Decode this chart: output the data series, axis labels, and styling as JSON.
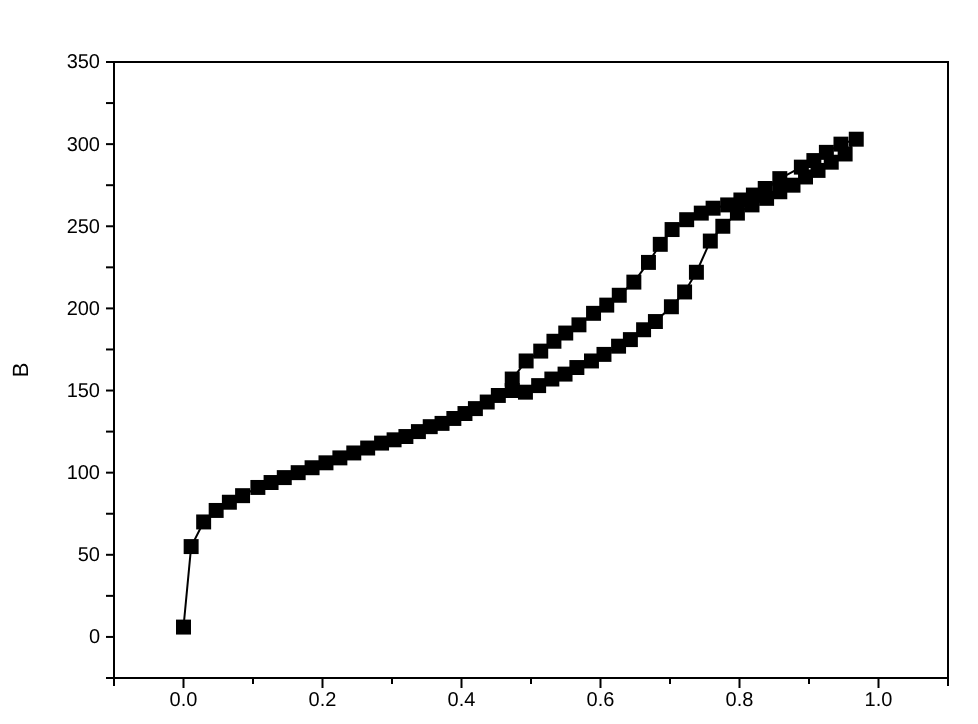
{
  "chart_data": {
    "type": "line",
    "ylabel": "B",
    "marker": "square",
    "line_style": "solid",
    "xlim": [
      -0.1,
      1.1
    ],
    "xticks": [
      {
        "value": -0.1,
        "label": null
      },
      {
        "value": 0,
        "label": "0.0"
      },
      {
        "value": 0.1,
        "label": null
      },
      0.2,
      {
        "value": 0.3,
        "label": null
      },
      0.4,
      {
        "value": 0.5,
        "label": null
      },
      0.6,
      {
        "value": 0.7,
        "label": null
      },
      0.8,
      {
        "value": 0.9,
        "label": null
      },
      {
        "value": 1,
        "label": "1.0"
      },
      {
        "value": 1.1,
        "label": null
      }
    ],
    "ylim": [
      -25,
      350
    ],
    "yticks": [
      {
        "value": -25,
        "label": null
      },
      0,
      {
        "value": 25,
        "label": null
      },
      50,
      {
        "value": 75,
        "label": null
      },
      100,
      {
        "value": 125,
        "label": null
      },
      150,
      {
        "value": 175,
        "label": null
      },
      200,
      {
        "value": 225,
        "label": null
      },
      250,
      {
        "value": 275,
        "label": null
      },
      300,
      {
        "value": 325,
        "label": null
      },
      350
    ],
    "series": [
      {
        "color": "#000000",
        "x": [
          0,
          0.011,
          0.029,
          0.047,
          0.066,
          0.085,
          0.107,
          0.126,
          0.145,
          0.165,
          0.185,
          0.205,
          0.225,
          0.245,
          0.265,
          0.285,
          0.303,
          0.32,
          0.338,
          0.355,
          0.372,
          0.389,
          0.405,
          0.42,
          0.437,
          0.453,
          0.473,
          0.492,
          0.511,
          0.53,
          0.549,
          0.566,
          0.587,
          0.605,
          0.626,
          0.643,
          0.662,
          0.679,
          0.702,
          0.721,
          0.738,
          0.758,
          0.776,
          0.797,
          0.818,
          0.839,
          0.858,
          0.877,
          0.895,
          0.913,
          0.932,
          0.952,
          0.968,
          0.946,
          0.925,
          0.907,
          0.889,
          0.858,
          0.837,
          0.82,
          0.802,
          0.783,
          0.762,
          0.745,
          0.724,
          0.703,
          0.686,
          0.669,
          0.648,
          0.627,
          0.609,
          0.59,
          0.569,
          0.55,
          0.533,
          0.514,
          0.493,
          0.473
        ],
        "values": [
          6,
          55,
          70,
          77,
          82,
          86,
          91,
          94,
          97,
          100,
          103,
          106,
          109,
          112,
          115,
          118,
          120,
          122,
          125,
          128,
          130,
          133,
          136,
          139,
          143,
          147,
          150,
          149,
          153,
          157,
          160,
          164,
          168,
          172,
          177,
          181,
          187,
          192,
          201,
          210,
          222,
          241,
          250,
          258,
          263,
          267,
          271,
          275,
          280,
          284,
          289,
          294,
          303,
          300,
          295,
          290,
          286,
          279,
          273,
          269,
          266,
          263,
          261,
          258,
          254,
          248,
          239,
          228,
          216,
          208,
          202,
          197,
          190,
          185,
          180,
          174,
          168,
          157
        ]
      }
    ]
  }
}
